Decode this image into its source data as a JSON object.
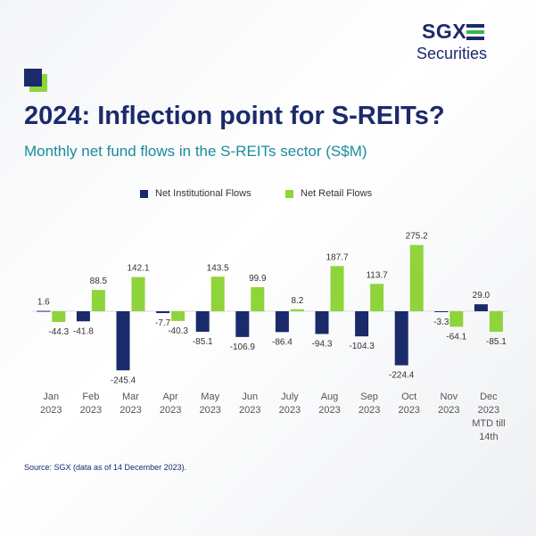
{
  "logo": {
    "text": "SGX",
    "subtext": "Securities"
  },
  "title": "2024: Inflection point for S-REITs?",
  "subtitle": "Monthly net fund flows in the S-REITs sector (S$M)",
  "source": "Source: SGX (data as of 14 December 2023).",
  "colors": {
    "institutional": "#1b2a6b",
    "retail": "#8ed43a",
    "label": "#333333",
    "axis": "#555555"
  },
  "chart_data": {
    "type": "bar",
    "categories": [
      [
        "Jan",
        "2023"
      ],
      [
        "Feb",
        "2023"
      ],
      [
        "Mar",
        "2023"
      ],
      [
        "Apr",
        "2023"
      ],
      [
        "May",
        "2023"
      ],
      [
        "Jun",
        "2023"
      ],
      [
        "July",
        "2023"
      ],
      [
        "Aug",
        "2023"
      ],
      [
        "Sep",
        "2023"
      ],
      [
        "Oct",
        "2023"
      ],
      [
        "Nov",
        "2023"
      ],
      [
        "Dec",
        "2023",
        "MTD till",
        "14th"
      ]
    ],
    "series": [
      {
        "name": "Net Institutional Flows",
        "values": [
          1.6,
          -41.8,
          -245.4,
          -7.7,
          -85.1,
          -106.9,
          -86.4,
          -94.3,
          -104.3,
          -224.4,
          -3.3,
          29.0
        ],
        "labels": [
          "1.6",
          "-41.8",
          "-245.4",
          "-7.7",
          "-85.1",
          "-106.9",
          "-86.4",
          "-94.3",
          "-104.3",
          "-224.4",
          "-3.3",
          "29.0"
        ]
      },
      {
        "name": "Net Retail Flows",
        "values": [
          -44.3,
          88.5,
          142.1,
          -40.3,
          143.5,
          99.9,
          8.2,
          187.7,
          113.7,
          275.2,
          -64.1,
          -85.1
        ],
        "labels": [
          "-44.3",
          "88.5",
          "142.1",
          "-40.3",
          "143.5",
          "99.9",
          "8.2",
          "187.7",
          "113.7",
          "275.2",
          "-64.1",
          "-85.1"
        ]
      }
    ],
    "legend_position": "top-center",
    "grid": false
  }
}
